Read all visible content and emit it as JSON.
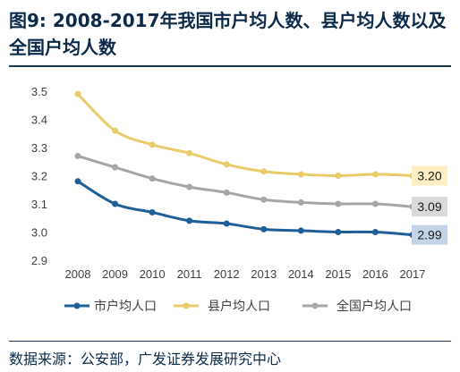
{
  "title": "图9: 2008-2017年我国市户均人数、县户均人数以及全国户均人数",
  "source": "数据来源：公安部，广发证券发展研究中心",
  "chart_data": {
    "type": "line",
    "categories": [
      "2008",
      "2009",
      "2010",
      "2011",
      "2012",
      "2013",
      "2014",
      "2015",
      "2016",
      "2017"
    ],
    "ylim": [
      2.9,
      3.5
    ],
    "yticks": [
      "2.9",
      "3.0",
      "3.1",
      "3.2",
      "3.3",
      "3.4",
      "3.5"
    ],
    "grid": false,
    "legend": "bottom",
    "series": [
      {
        "name": "市户均人口",
        "color": "#1f5f99",
        "label_bg": "#c5d3e8",
        "values": [
          3.18,
          3.1,
          3.07,
          3.04,
          3.03,
          3.01,
          3.005,
          3.0,
          3.0,
          2.99
        ],
        "end_label": "2.99"
      },
      {
        "name": "县户均人口",
        "color": "#e8cc6a",
        "label_bg": "#fbeec2",
        "values": [
          3.49,
          3.36,
          3.31,
          3.28,
          3.24,
          3.215,
          3.205,
          3.2,
          3.205,
          3.2
        ],
        "end_label": "3.20"
      },
      {
        "name": "全国户均人口",
        "color": "#a6a6a6",
        "label_bg": "#d9d9d9",
        "values": [
          3.27,
          3.23,
          3.19,
          3.16,
          3.14,
          3.115,
          3.105,
          3.1,
          3.1,
          3.09
        ],
        "end_label": "3.09"
      }
    ]
  }
}
